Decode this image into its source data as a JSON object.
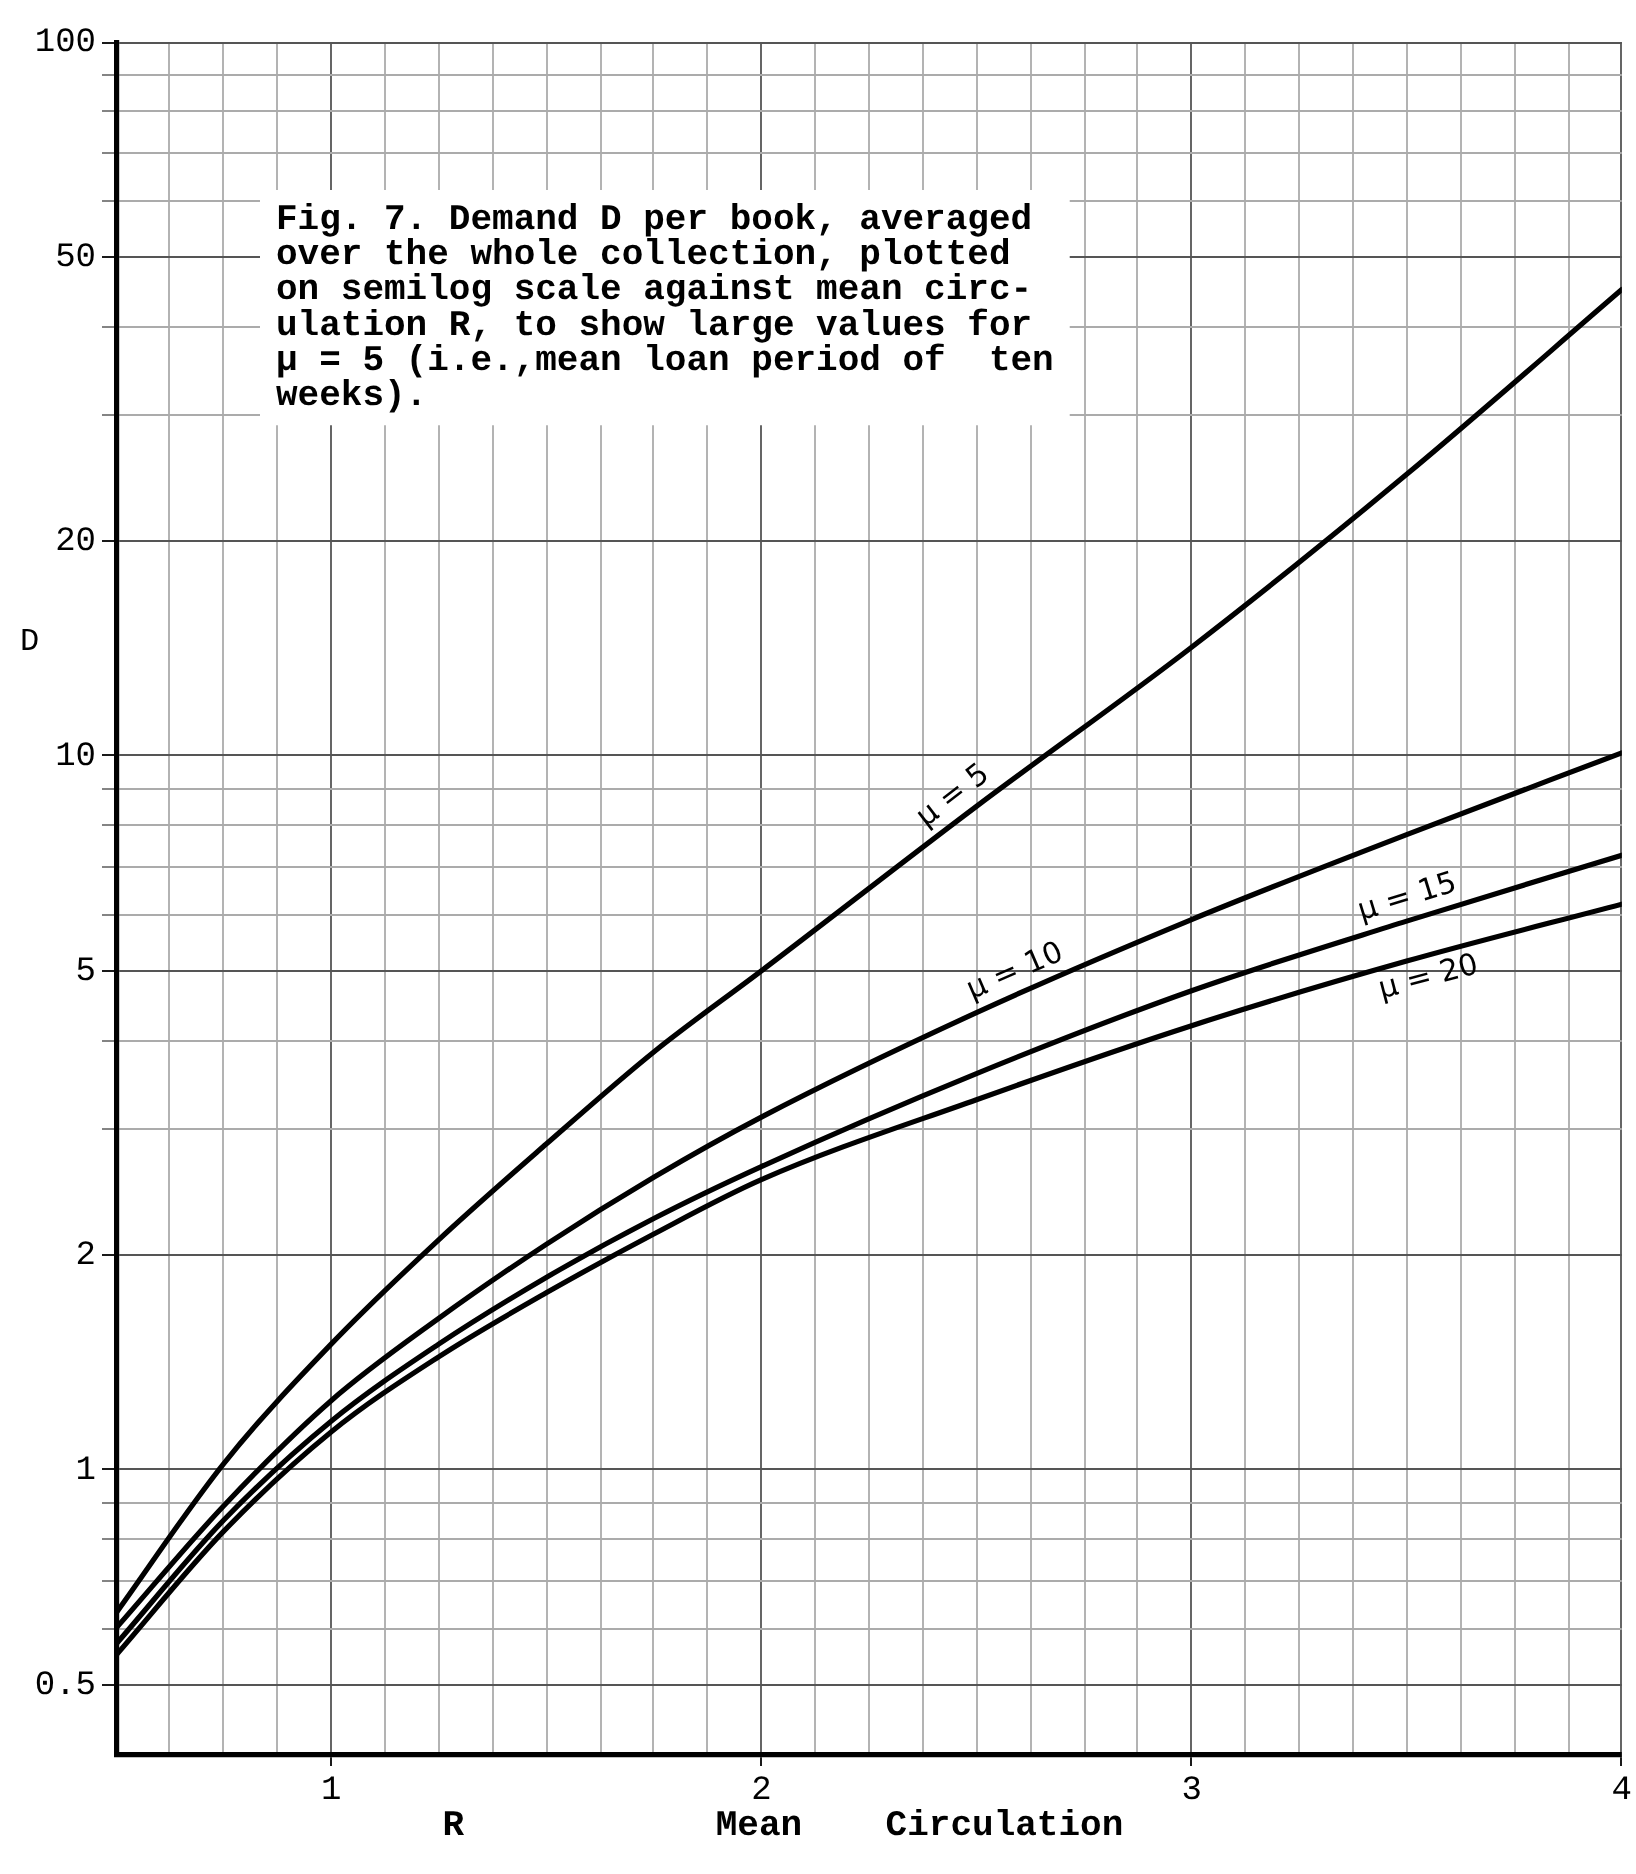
{
  "chart_data": {
    "type": "line",
    "annotations": [
      "Fig. 7. Demand D per book, averaged\nover the whole collection, plotted\non semilog scale against mean circ-\nulation R, to show large values for\nμ = 5 (i.e.,mean loan period of  ten\nweeks)."
    ],
    "xlabel": "R Mean Circulation",
    "ylabel": "D",
    "x": [
      0.5,
      0.75,
      1,
      1.25,
      1.5,
      1.75,
      2,
      2.5,
      3,
      3.5,
      4
    ],
    "series": [
      {
        "name": "μ = 5",
        "color": "#000000",
        "values": [
          0.63,
          1.02,
          1.5,
          2.1,
          2.86,
          3.85,
          5.0,
          8.5,
          14.2,
          24.8,
          45
        ]
      },
      {
        "name": "μ = 10",
        "color": "#000000",
        "values": [
          0.6,
          0.89,
          1.25,
          1.63,
          2.07,
          2.57,
          3.12,
          4.37,
          5.9,
          7.76,
          10.1
        ]
      },
      {
        "name": "μ = 15",
        "color": "#000000",
        "values": [
          0.57,
          0.85,
          1.17,
          1.5,
          1.86,
          2.25,
          2.66,
          3.59,
          4.69,
          5.87,
          7.26
        ]
      },
      {
        "name": "μ = 20",
        "color": "#000000",
        "values": [
          0.55,
          0.82,
          1.13,
          1.44,
          1.77,
          2.14,
          2.55,
          3.3,
          4.19,
          5.16,
          6.2
        ]
      }
    ],
    "xlim": [
      0.5,
      4
    ],
    "xticks": [
      {
        "value": 0.625,
        "label": null
      },
      {
        "value": 0.75,
        "label": null
      },
      {
        "value": 0.875,
        "label": null
      },
      1,
      {
        "value": 1.125,
        "label": null
      },
      {
        "value": 1.25,
        "label": null
      },
      {
        "value": 1.375,
        "label": null
      },
      {
        "value": 1.5,
        "label": null
      },
      {
        "value": 1.625,
        "label": null
      },
      {
        "value": 1.75,
        "label": null
      },
      {
        "value": 1.875,
        "label": null
      },
      2,
      {
        "value": 2.125,
        "label": null
      },
      {
        "value": 2.25,
        "label": null
      },
      {
        "value": 2.375,
        "label": null
      },
      {
        "value": 2.5,
        "label": null
      },
      {
        "value": 2.625,
        "label": null
      },
      {
        "value": 2.75,
        "label": null
      },
      {
        "value": 2.875,
        "label": null
      },
      3,
      {
        "value": 3.125,
        "label": null
      },
      {
        "value": 3.25,
        "label": null
      },
      {
        "value": 3.375,
        "label": null
      },
      {
        "value": 3.5,
        "label": null
      },
      {
        "value": 3.625,
        "label": null
      },
      {
        "value": 3.75,
        "label": null
      },
      {
        "value": 3.875,
        "label": null
      },
      4
    ],
    "ylim": [
      0.4,
      100
    ],
    "yticks": [
      0.5,
      {
        "value": 0.6,
        "label": null
      },
      {
        "value": 0.7,
        "label": null
      },
      {
        "value": 0.8,
        "label": null
      },
      {
        "value": 0.9,
        "label": null
      },
      1,
      2,
      {
        "value": 3,
        "label": null
      },
      {
        "value": 4,
        "label": null
      },
      5,
      {
        "value": 6,
        "label": null
      },
      {
        "value": 7,
        "label": null
      },
      {
        "value": 8,
        "label": null
      },
      {
        "value": 9,
        "label": null
      },
      10,
      20,
      {
        "value": 30,
        "label": null
      },
      {
        "value": 40,
        "label": null
      },
      50,
      {
        "value": 60,
        "label": null
      },
      {
        "value": 70,
        "label": null
      },
      {
        "value": 80,
        "label": null
      },
      {
        "value": 90,
        "label": null
      },
      100
    ],
    "log": true,
    "grid": true,
    "legend": false,
    "marker": "none",
    "line_style": "solid"
  }
}
